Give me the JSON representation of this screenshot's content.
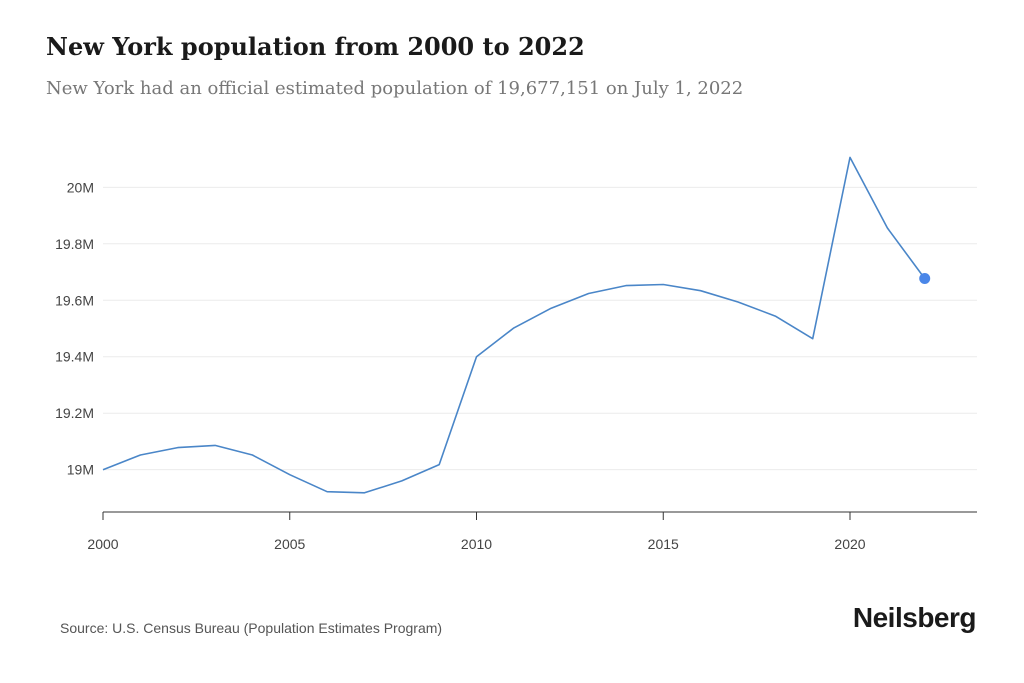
{
  "header": {
    "title": "New York population from 2000 to 2022",
    "subtitle": "New York had an official estimated population of 19,677,151 on July 1, 2022"
  },
  "footer": {
    "source": "Source: U.S. Census Bureau (Population Estimates Program)",
    "brand": "Neilsberg"
  },
  "chart_data": {
    "type": "line",
    "title": "New York population from 2000 to 2022",
    "xlabel": "",
    "ylabel": "",
    "xlim": [
      2000,
      2023.4
    ],
    "ylim": [
      18850000,
      20150000
    ],
    "x_ticks": [
      2000,
      2005,
      2010,
      2015,
      2020
    ],
    "y_ticks": [
      19000000,
      19200000,
      19400000,
      19600000,
      19800000,
      20000000
    ],
    "y_tick_labels": [
      "19M",
      "19.2M",
      "19.4M",
      "19.6M",
      "19.8M",
      "20M"
    ],
    "grid": "horizontal",
    "line_color": "#4a86c8",
    "marker_color": "#4a86e8",
    "series": [
      {
        "x": [
          2000,
          2001,
          2002,
          2003,
          2004,
          2005,
          2006,
          2007,
          2008,
          2009,
          2010,
          2011,
          2012,
          2013,
          2014,
          2015,
          2016,
          2017,
          2018,
          2019,
          2020,
          2021,
          2022
        ],
        "values": [
          19000000,
          19052000,
          19078000,
          19086000,
          19052000,
          18982000,
          18922000,
          18918000,
          18960000,
          19018000,
          19400000,
          19502000,
          19572000,
          19624000,
          19652000,
          19656000,
          19634000,
          19594000,
          19544000,
          19464000,
          20106000,
          19856000,
          19677151
        ]
      }
    ],
    "highlight_point": {
      "x": 2022,
      "y": 19677151
    }
  }
}
